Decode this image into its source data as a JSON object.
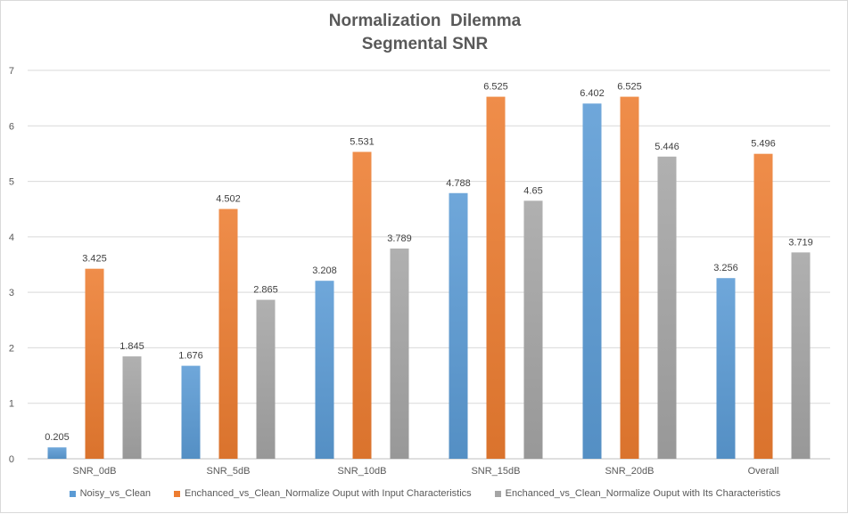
{
  "chart_data": {
    "type": "bar",
    "title": "Normalization  Dilemma",
    "subtitle": "Segmental SNR",
    "categories": [
      "SNR_0dB",
      "SNR_5dB",
      "SNR_10dB",
      "SNR_15dB",
      "SNR_20dB",
      "Overall"
    ],
    "series": [
      {
        "name": "Noisy_vs_Clean",
        "color": "#5B9BD5",
        "values": [
          0.205,
          1.676,
          3.208,
          4.788,
          6.402,
          3.256
        ],
        "labels": [
          "0.205",
          "1.676",
          "3.208",
          "4.788",
          "6.402",
          "3.256"
        ]
      },
      {
        "name": "Enchanced_vs_Clean_Normalize Ouput with Input Characteristics",
        "color": "#ED7D31",
        "values": [
          3.425,
          4.502,
          5.531,
          6.525,
          6.525,
          5.496
        ],
        "labels": [
          "3.425",
          "4.502",
          "5.531",
          "6.525",
          "6.525",
          "5.496"
        ]
      },
      {
        "name": "Enchanced_vs_Clean_Normalize Ouput with Its Characteristics",
        "color": "#A5A5A5",
        "values": [
          1.845,
          2.865,
          3.789,
          4.65,
          5.446,
          3.719
        ],
        "labels": [
          "1.845",
          "2.865",
          "3.789",
          "4.65",
          "5.446",
          "3.719"
        ]
      }
    ],
    "ylim": [
      0,
      7
    ],
    "yticks": [
      "0",
      "1",
      "2",
      "3",
      "4",
      "5",
      "6",
      "7"
    ],
    "xlabel": "",
    "ylabel": "",
    "grid": true,
    "legend_position": "bottom"
  }
}
